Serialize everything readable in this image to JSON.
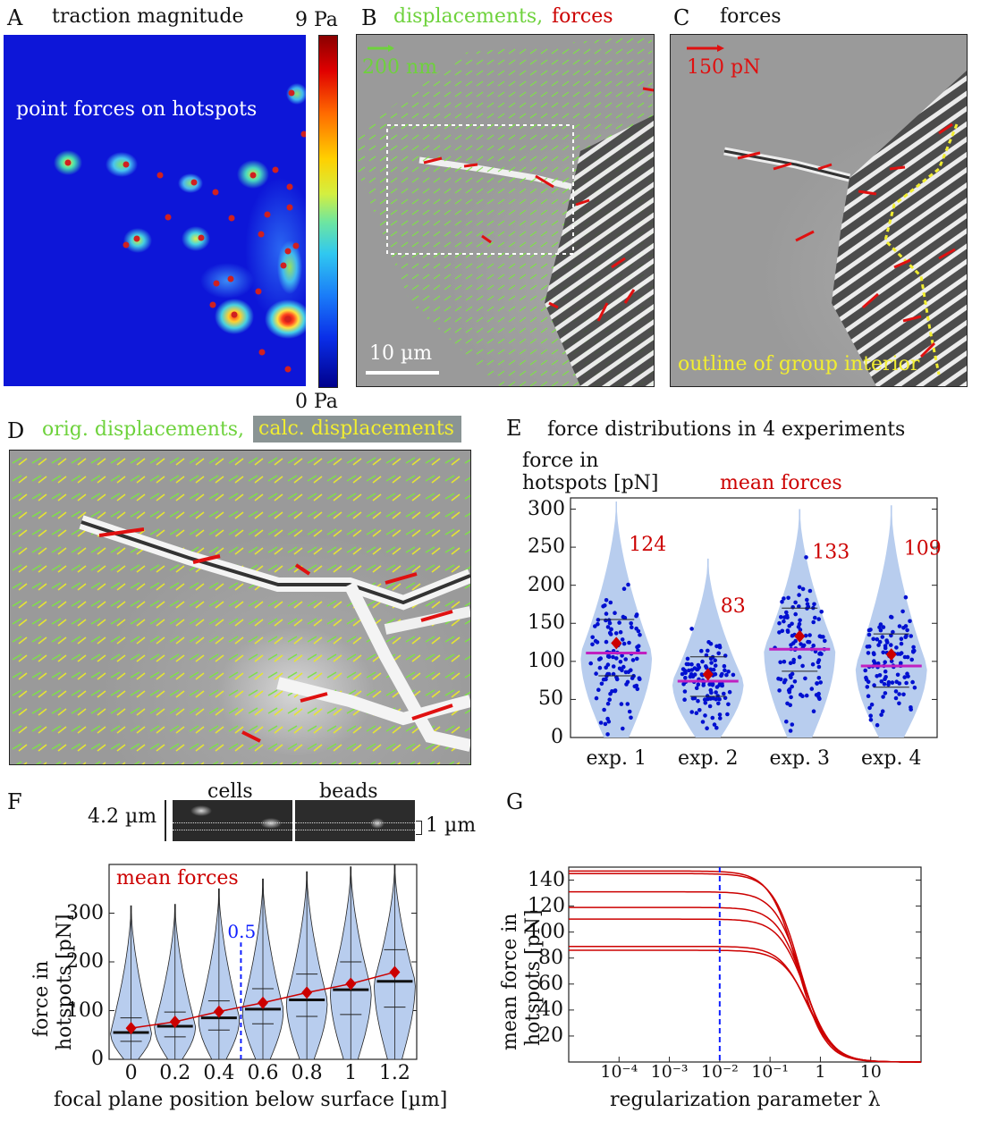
{
  "panels": {
    "A": {
      "letter": "A",
      "title": "traction magnitude",
      "annotation": "point forces on hotspots",
      "cbar_max": "9 Pa",
      "cbar_min": "0 Pa"
    },
    "B": {
      "letter": "B",
      "title_green": "displacements,",
      "title_red": "forces",
      "arrow_scale": "200 nm",
      "scale_bar": "10 µm"
    },
    "C": {
      "letter": "C",
      "title": "forces",
      "arrow_scale": "150 pN",
      "outline": "outline of group interior"
    },
    "D": {
      "letter": "D",
      "title_orig": "orig. displacements,",
      "title_calc": "calc. displacements"
    },
    "E": {
      "letter": "E",
      "title": "force distributions in 4 experiments",
      "ylabel_1": "force in",
      "ylabel_2": "hotspots [pN]",
      "mean_label": "mean forces"
    },
    "F": {
      "letter": "F",
      "cells": "cells",
      "beads": "beads",
      "height": "4.2 µm",
      "slice": "1 µm",
      "mean_label": "mean forces",
      "marker": "0.5",
      "ylabel_1": "force in",
      "ylabel_2": "hotspots [pN]",
      "xlabel": "focal plane position below surface [µm]"
    },
    "G": {
      "letter": "G",
      "ylabel_1": "mean force in",
      "ylabel_2": "hotspots [pN]",
      "xlabel": "regularization parameter λ"
    }
  },
  "colors": {
    "red": "#cc0000",
    "green": "#6ed23c",
    "yellow": "#f2ee30",
    "magenta": "#c020c0",
    "blue": "#0010d0",
    "violin": "#b8cdee",
    "dash": "#1020ff"
  },
  "chart_data": [
    {
      "id": "E",
      "type": "violin",
      "title": "force distributions in 4 experiments",
      "ylabel": "force in hotspots [pN]",
      "categories": [
        "exp. 1",
        "exp. 2",
        "exp. 3",
        "exp. 4"
      ],
      "ylim": [
        0,
        310
      ],
      "yticks": [
        "0",
        "50",
        "100",
        "150",
        "200",
        "250",
        "300"
      ],
      "means": [
        124,
        83,
        133,
        109
      ],
      "mean_labels": [
        "124",
        "83",
        "133",
        "109"
      ],
      "medians": [
        111,
        74,
        116,
        94
      ],
      "q1": [
        81,
        54,
        87,
        66
      ],
      "q3": [
        155,
        106,
        170,
        136
      ],
      "max": [
        310,
        235,
        300,
        305
      ]
    },
    {
      "id": "F",
      "type": "violin",
      "ylabel": "force in hotspots [pN]",
      "xlabel": "focal plane position below surface [µm]",
      "categories": [
        "0",
        "0.2",
        "0.4",
        "0.6",
        "0.8",
        "1",
        "1.2"
      ],
      "ylim": [
        0,
        400
      ],
      "yticks": [
        "0",
        "100",
        "200",
        "300"
      ],
      "means": [
        64,
        77,
        98,
        116,
        137,
        155,
        179
      ],
      "medians": [
        55,
        68,
        85,
        103,
        122,
        143,
        160
      ],
      "q1": [
        37,
        46,
        60,
        73,
        88,
        92,
        107
      ],
      "q3": [
        85,
        97,
        120,
        145,
        175,
        200,
        225
      ],
      "max": [
        315,
        318,
        350,
        370,
        385,
        395,
        400
      ],
      "marker_x": 0.5
    },
    {
      "id": "G",
      "type": "line",
      "ylabel": "mean force in hotspots [pN]",
      "xlabel": "regularization parameter λ",
      "xscale": "log",
      "xlim": [
        1e-05,
        100
      ],
      "ylim": [
        0,
        150
      ],
      "yticks": [
        "20",
        "40",
        "60",
        "80",
        "100",
        "120",
        "140"
      ],
      "xticks": [
        "10⁻⁴",
        "10⁻³",
        "10⁻²",
        "10⁻¹",
        "1",
        "10"
      ],
      "plateaus": [
        147,
        145,
        131,
        119,
        110,
        89,
        86
      ],
      "marker_x": 0.01
    }
  ]
}
